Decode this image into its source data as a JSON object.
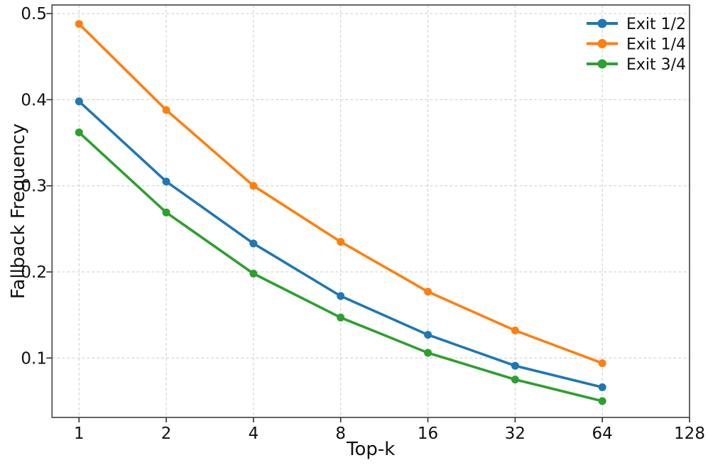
{
  "figure": {
    "background": "#ffffff",
    "text_color": "#111111"
  },
  "chart_data": {
    "type": "line",
    "title": "",
    "xlabel": "Top-k",
    "ylabel": "Fallback Frequency",
    "x_scale": "log2",
    "x": [
      1,
      2,
      4,
      8,
      16,
      32,
      64
    ],
    "x_ticks": [
      "1",
      "2",
      "4",
      "8",
      "16",
      "32",
      "64",
      "128"
    ],
    "x_tick_values": [
      1,
      2,
      4,
      8,
      16,
      32,
      64,
      128
    ],
    "y_ticks": [
      "0.1",
      "0.2",
      "0.3",
      "0.4",
      "0.5"
    ],
    "y_tick_values": [
      0.1,
      0.2,
      0.3,
      0.4,
      0.5
    ],
    "xlim": [
      0.807,
      128
    ],
    "ylim": [
      0.031,
      0.51
    ],
    "grid": true,
    "grid_on": "both",
    "grid_style": "dashed",
    "grid_color": "#cccccc",
    "spine_color": "#555555",
    "tick_color": "#333333",
    "legend_position": "upper-right",
    "legend_frame": false,
    "series": [
      {
        "name": "Exit 1/2",
        "color": "#1f77b4",
        "values": [
          0.398,
          0.305,
          0.233,
          0.172,
          0.127,
          0.091,
          0.066
        ]
      },
      {
        "name": "Exit 1/4",
        "color": "#ff7f0e",
        "values": [
          0.488,
          0.388,
          0.3,
          0.235,
          0.177,
          0.132,
          0.094
        ]
      },
      {
        "name": "Exit 3/4",
        "color": "#2ca02c",
        "values": [
          0.362,
          0.269,
          0.198,
          0.147,
          0.106,
          0.075,
          0.05
        ]
      }
    ]
  }
}
